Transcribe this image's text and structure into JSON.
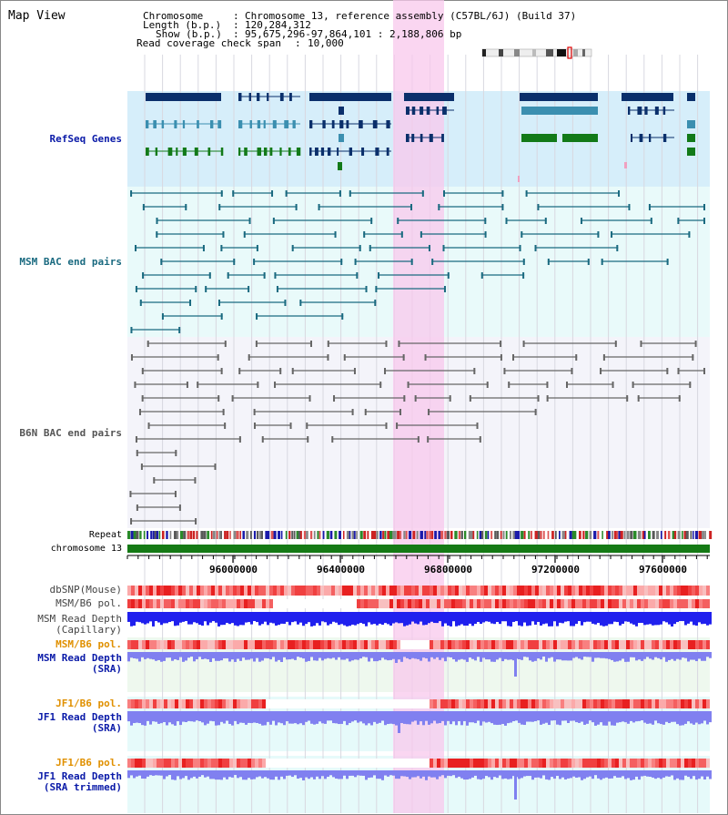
{
  "page": {
    "title": "Map View"
  },
  "header": {
    "chromosome_label": "Chromosome",
    "chromosome_value": "Chromosome 13, reference assembly (C57BL/6J) (Build 37)",
    "length_label": "Length (b.p.)",
    "length_value": "120,284,312",
    "show_label": "Show (b.p.)",
    "show_value": "95,675,296-97,864,101 : 2,188,806 bp",
    "coverage_label": "Read coverage check span",
    "coverage_value": "10,000"
  },
  "tracks": {
    "refseq": "RefSeq Genes",
    "msm_bac": "MSM BAC end pairs",
    "b6n_bac": "B6N BAC end pairs",
    "repeat": "Repeat",
    "chromosome": "chromosome 13",
    "dbsnp": "dbSNP(Mouse)",
    "msm_b6_pol_1": "MSM/B6 pol.",
    "msm_depth_cap_1": "MSM Read Depth",
    "msm_depth_cap_2": "(Capillary)",
    "msm_b6_pol_2": "MSM/B6 pol.",
    "msm_depth_sra_1": "MSM Read Depth",
    "msm_depth_sra_2": "(SRA)",
    "jf1_b6_pol_1": "JF1/B6 pol.",
    "jf1_depth_sra_1": "JF1 Read Depth",
    "jf1_depth_sra_2": "(SRA)",
    "jf1_b6_pol_2": "JF1/B6 pol.",
    "jf1_depth_trim_1": "JF1 Read Depth",
    "jf1_depth_trim_2": "(SRA trimmed)"
  },
  "axis": {
    "ticks": [
      "96000000",
      "96400000",
      "96800000",
      "97200000",
      "97600000"
    ]
  },
  "colors": {
    "highlight": "#f8c8ec",
    "refseq_bg": "#d6eefa",
    "bac_bg": "#e9fafa",
    "gene_navy": "#0a2f6b",
    "gene_blue": "#3b8fb0",
    "gene_green": "#127a18",
    "msm_bac": "#1a6a80",
    "b6n_bac": "#666666",
    "chromosome": "#157a15",
    "depth_blue": "#2020ee",
    "depth_light": "#8080f0",
    "label_blue": "#0a1aa8",
    "label_orange": "#e09000",
    "label_teal": "#1a6a80"
  }
}
